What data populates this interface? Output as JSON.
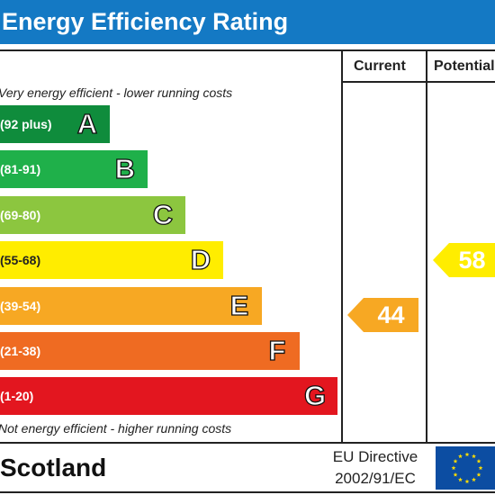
{
  "title": "Energy Efficiency Rating",
  "columns": {
    "current": "Current",
    "potential": "Potential"
  },
  "notes": {
    "top": "Very energy efficient - lower running costs",
    "bottom": "Not energy efficient - higher running costs"
  },
  "footer": {
    "country": "Scotland",
    "directive_line1": "EU Directive",
    "directive_line2": "2002/91/EC",
    "flag_icon": "eu-flag-icon"
  },
  "chart_data": {
    "type": "bar",
    "title": "Energy Efficiency Rating",
    "categories": [
      "A",
      "B",
      "C",
      "D",
      "E",
      "F",
      "G"
    ],
    "bands": [
      {
        "letter": "A",
        "range": "(92 plus)",
        "color": "#0f8c3c"
      },
      {
        "letter": "B",
        "range": "(81-91)",
        "color": "#1fb04a"
      },
      {
        "letter": "C",
        "range": "(69-80)",
        "color": "#8cc63f"
      },
      {
        "letter": "D",
        "range": "(55-68)",
        "color": "#ffed00"
      },
      {
        "letter": "E",
        "range": "(39-54)",
        "color": "#f7a823"
      },
      {
        "letter": "F",
        "range": "(21-38)",
        "color": "#ef6b22"
      },
      {
        "letter": "G",
        "range": "(1-20)",
        "color": "#e3161f"
      }
    ],
    "current": {
      "value": 44,
      "band": "E",
      "color": "#f7a823"
    },
    "potential": {
      "value": 58,
      "band": "D",
      "color": "#ffed00"
    }
  }
}
